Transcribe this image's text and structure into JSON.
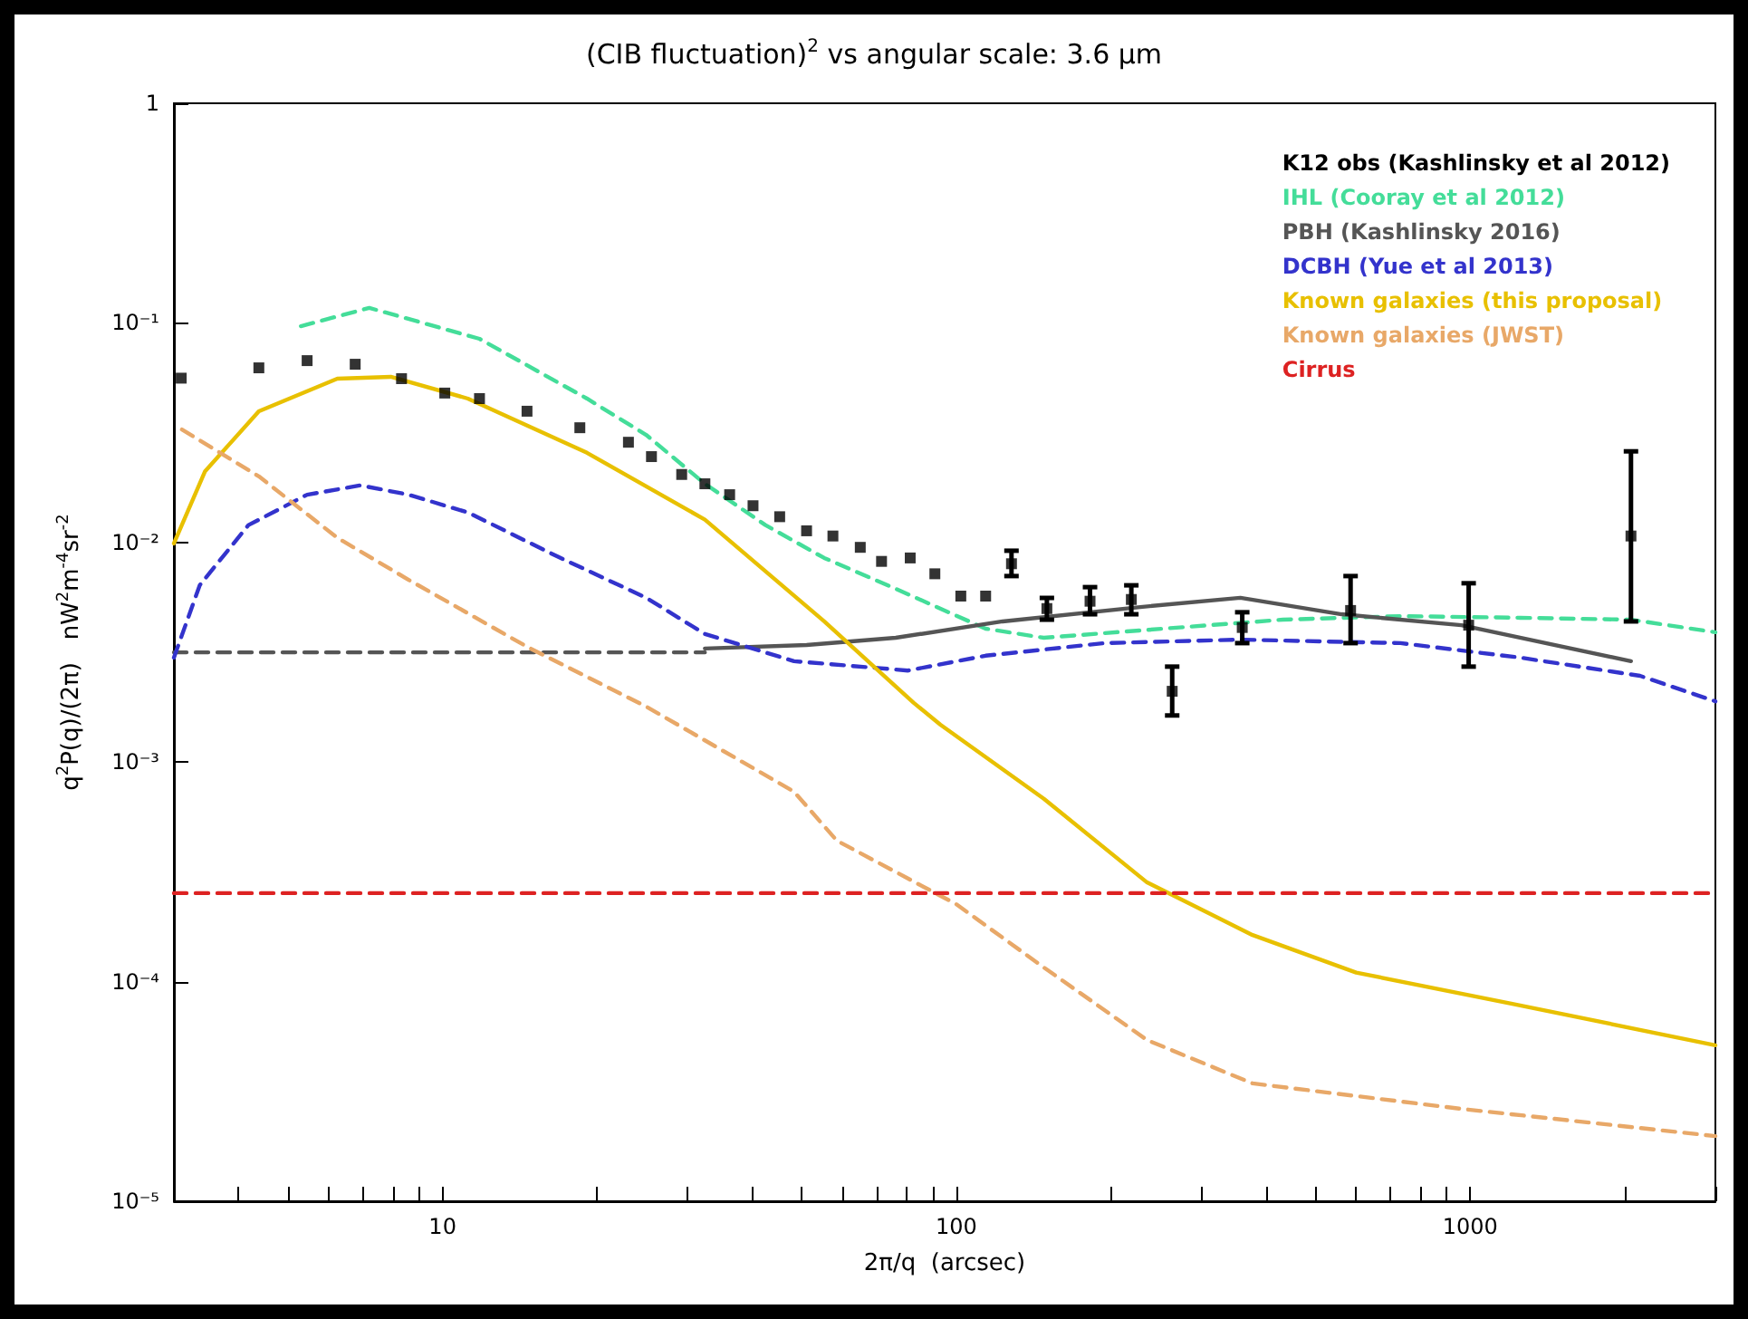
{
  "chart_data": {
    "type": "line",
    "title": "(CIB fluctuation)$^{2}$ vs angular scale: 3.6 μm",
    "xlabel": "2π/q  (arcsec)",
    "ylabel": "q$^{2}$P(q)/(2π)   nW$^{2}$m$^{-4}$sr$^{-2}$",
    "log": "xy",
    "xlim": [
      3,
      3000
    ],
    "ylim": [
      1e-05,
      1
    ],
    "grid": false,
    "legend": "top right",
    "xticks": [
      {
        "value": 3,
        "label": null
      },
      {
        "value": 4,
        "label": null
      },
      {
        "value": 5,
        "label": null
      },
      {
        "value": 6,
        "label": null
      },
      {
        "value": 7,
        "label": null
      },
      {
        "value": 8,
        "label": null
      },
      {
        "value": 9,
        "label": null
      },
      10,
      {
        "value": 20,
        "label": null
      },
      {
        "value": 30,
        "label": null
      },
      {
        "value": 40,
        "label": null
      },
      {
        "value": 50,
        "label": null
      },
      {
        "value": 60,
        "label": null
      },
      {
        "value": 70,
        "label": null
      },
      {
        "value": 80,
        "label": null
      },
      {
        "value": 90,
        "label": null
      },
      100,
      {
        "value": 200,
        "label": null
      },
      {
        "value": 300,
        "label": null
      },
      {
        "value": 400,
        "label": null
      },
      {
        "value": 500,
        "label": null
      },
      {
        "value": 600,
        "label": null
      },
      {
        "value": 700,
        "label": null
      },
      {
        "value": 800,
        "label": null
      },
      {
        "value": 900,
        "label": null
      },
      1000,
      {
        "value": 2000,
        "label": null
      },
      {
        "value": 3000,
        "label": null
      }
    ],
    "yticks": [
      {
        "value": 1e-05,
        "label": "10⁻⁵"
      },
      {
        "value": 0.0001,
        "label": "10⁻⁴"
      },
      {
        "value": 0.001,
        "label": "10⁻³"
      },
      {
        "value": 0.01,
        "label": "10⁻²"
      },
      {
        "value": 0.1,
        "label": "10⁻¹"
      },
      1
    ],
    "series": [
      {
        "name": "K12 obs (Kashlinsky et al 2012)",
        "type": "scatter",
        "color": "#000000",
        "marker": "square",
        "x": [
          3.1,
          4.39,
          5.45,
          6.76,
          8.32,
          10.1,
          11.8,
          14.6,
          18.5,
          23.0,
          25.5,
          29.2,
          32.4,
          36.2,
          40.2,
          45.3,
          51.1,
          57.5,
          65.0,
          71.5,
          81.3,
          90.8,
          102,
          114,
          128,
          150,
          182,
          219,
          263,
          360,
          585,
          993,
          2055
        ],
        "values": [
          0.056,
          0.0624,
          0.0673,
          0.0648,
          0.0557,
          0.0479,
          0.0452,
          0.0396,
          0.0333,
          0.0286,
          0.0246,
          0.0204,
          0.0185,
          0.0165,
          0.0147,
          0.0131,
          0.0113,
          0.0107,
          0.0095,
          0.0082,
          0.0085,
          0.0072,
          0.0057,
          0.0057,
          0.008,
          0.005,
          0.0054,
          0.0055,
          0.0021,
          0.0041,
          0.0049,
          0.0042,
          0.0107
        ],
        "errors": [
          null,
          null,
          null,
          null,
          null,
          null,
          null,
          null,
          null,
          null,
          null,
          null,
          null,
          null,
          null,
          null,
          null,
          null,
          null,
          null,
          null,
          null,
          null,
          null,
          [
            0.00703,
            0.00917
          ],
          [
            0.00445,
            0.00559
          ],
          [
            0.00471,
            0.00626
          ],
          [
            0.00471,
            0.00638
          ],
          [
            0.00163,
            0.00272
          ],
          [
            0.00348,
            0.00481
          ],
          [
            0.00348,
            0.00703
          ],
          [
            0.00272,
            0.00652
          ],
          [
            0.00437,
            0.026
          ]
        ]
      },
      {
        "name": "IHL (Cooray et al 2012)",
        "type": "line",
        "color": "#44dd99",
        "line_style": "dashed",
        "x": [
          5.3,
          7.2,
          11.8,
          19.1,
          24.9,
          32.4,
          42.5,
          55.3,
          76.2,
          114,
          148,
          253,
          432,
          732,
          1251,
          2055,
          3000
        ],
        "values": [
          0.0966,
          0.117,
          0.0846,
          0.0452,
          0.0309,
          0.0185,
          0.012,
          0.0085,
          0.00615,
          0.00405,
          0.00368,
          0.00405,
          0.00445,
          0.00462,
          0.00454,
          0.00445,
          0.0039
        ]
      },
      {
        "name": "PBH (Kashlinsky 2016)",
        "type": "line",
        "color": "#555555",
        "line_style": "solid",
        "x": [
          32.4,
          51.1,
          76.2,
          123,
          228,
          357,
          562,
          961,
          2055
        ],
        "values": [
          0.00329,
          0.00341,
          0.00368,
          0.00437,
          0.00508,
          0.0056,
          0.00471,
          0.0042,
          0.00288
        ]
      },
      {
        "type": "line",
        "color": "#555555",
        "line_style": "dashed",
        "x": [
          3,
          32.4
        ],
        "values": [
          0.00316,
          0.00316
        ]
      },
      {
        "name": "DCBH (Yue et al 2013)",
        "type": "line",
        "color": "#3333cc",
        "line_style": "dashed",
        "x": [
          3,
          3.37,
          4.19,
          5.45,
          6.92,
          8.59,
          11.2,
          16.7,
          24.9,
          32.4,
          48.3,
          80.5,
          114,
          194,
          357,
          732,
          1251,
          2140,
          3000
        ],
        "values": [
          0.00299,
          0.0064,
          0.012,
          0.0165,
          0.0182,
          0.0165,
          0.0137,
          0.00865,
          0.0056,
          0.00383,
          0.00288,
          0.00261,
          0.00305,
          0.00348,
          0.00361,
          0.00348,
          0.00299,
          0.00247,
          0.00189
        ]
      },
      {
        "name": "Known galaxies (this proposal)",
        "type": "line",
        "color": "#e8c000",
        "line_style": "solid",
        "x": [
          3,
          3.45,
          4.39,
          6.24,
          7.93,
          11.2,
          19.1,
          32.4,
          55.3,
          82.6,
          93.1,
          148,
          235,
          377,
          600,
          1202,
          3000
        ],
        "values": [
          0.0099,
          0.0211,
          0.0396,
          0.0557,
          0.0568,
          0.0452,
          0.0256,
          0.0127,
          0.00437,
          0.00186,
          0.00148,
          0.00068,
          0.000283,
          0.000163,
          0.00011,
          7.94e-05,
          5.13e-05
        ]
      },
      {
        "name": "Known galaxies (JWST)",
        "type": "line",
        "color": "#e8a868",
        "line_style": "dashed",
        "x": [
          3.11,
          4.39,
          6.24,
          8.59,
          14.6,
          24.9,
          48.3,
          58.5,
          100,
          148,
          235,
          377,
          953,
          3000
        ],
        "values": [
          0.0327,
          0.02,
          0.0105,
          0.00676,
          0.00335,
          0.00179,
          0.000733,
          0.000439,
          0.000225,
          0.000116,
          5.42e-05,
          3.44e-05,
          2.64e-05,
          1.98e-05
        ]
      },
      {
        "name": "Cirrus",
        "type": "line",
        "color": "#dd2222",
        "line_style": "dashed",
        "x": [
          3,
          3000
        ],
        "values": [
          0.000253,
          0.000253
        ]
      }
    ]
  }
}
